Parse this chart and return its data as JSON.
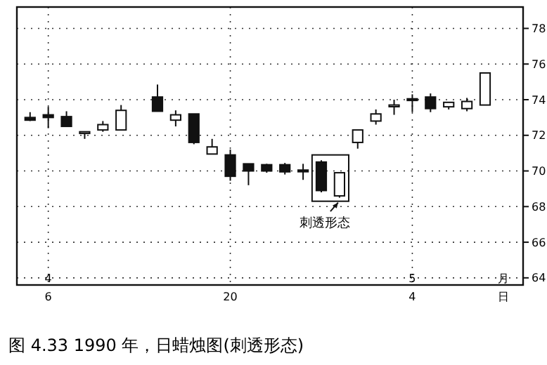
{
  "chart_data": {
    "type": "candlestick",
    "title": "图 4.33 1990 年，日蜡烛图(刺透形态)",
    "categories": [
      null,
      "6",
      null,
      null,
      null,
      null,
      null,
      null,
      null,
      null,
      null,
      "20",
      null,
      null,
      null,
      null,
      null,
      null,
      null,
      null,
      null,
      "4",
      null,
      null,
      null,
      null,
      "日"
    ],
    "ohlc": [
      [
        73.0,
        73.3,
        72.8,
        72.85
      ],
      [
        73.15,
        73.6,
        72.4,
        73.0
      ],
      [
        73.05,
        73.35,
        72.5,
        72.5
      ],
      [
        72.2,
        72.2,
        71.8,
        72.2
      ],
      [
        72.3,
        72.8,
        72.2,
        72.6
      ],
      [
        72.3,
        73.7,
        72.3,
        73.4
      ],
      null,
      [
        74.15,
        74.85,
        73.35,
        73.35
      ],
      [
        72.85,
        73.4,
        72.5,
        73.15
      ],
      [
        73.2,
        73.2,
        71.5,
        71.6
      ],
      [
        70.95,
        71.8,
        70.95,
        71.35
      ],
      [
        70.9,
        71.2,
        69.45,
        69.7
      ],
      [
        70.4,
        70.4,
        69.2,
        70.0
      ],
      [
        70.35,
        70.4,
        69.9,
        70.0
      ],
      [
        70.35,
        70.45,
        69.8,
        69.95
      ],
      [
        70.05,
        70.4,
        69.5,
        70.0
      ],
      [
        70.5,
        70.6,
        68.8,
        68.9
      ],
      [
        68.6,
        69.9,
        68.5,
        69.9
      ],
      [
        71.6,
        72.3,
        71.25,
        72.3
      ],
      [
        72.8,
        73.45,
        72.6,
        73.2
      ],
      [
        73.7,
        74.0,
        73.15,
        73.7
      ],
      [
        74.05,
        74.3,
        73.3,
        74.0
      ],
      [
        74.15,
        74.35,
        73.3,
        73.5
      ],
      [
        73.6,
        73.85,
        73.45,
        73.85
      ],
      [
        73.5,
        74.1,
        73.35,
        73.9
      ],
      [
        73.7,
        75.5,
        73.7,
        75.5
      ],
      null
    ],
    "color": "#111111",
    "ylim": [
      63.6,
      79.2
    ],
    "yticks": [
      64,
      66,
      68,
      70,
      72,
      74,
      76,
      78
    ],
    "grid": true,
    "annotations": [
      "刺透形态",
      "4",
      "5",
      "月"
    ]
  }
}
